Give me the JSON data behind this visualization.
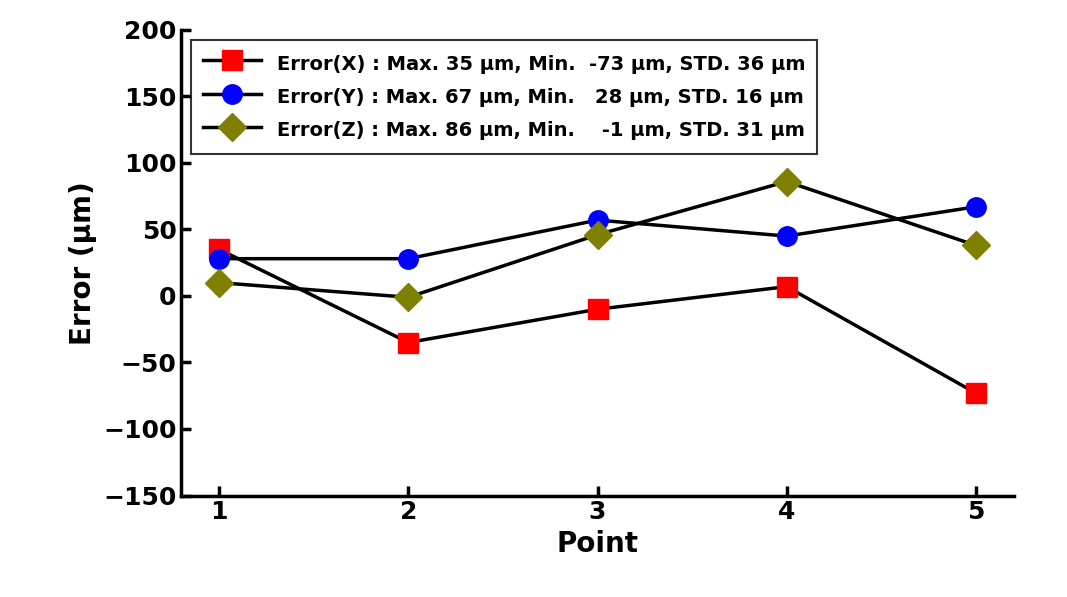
{
  "x": [
    1,
    2,
    3,
    4,
    5
  ],
  "error_x": [
    35,
    -35,
    -10,
    7,
    -73
  ],
  "error_y": [
    28,
    28,
    57,
    45,
    67
  ],
  "error_z": [
    10,
    -1,
    46,
    86,
    38
  ],
  "color_x": "#FF0000",
  "color_y": "#0000FF",
  "color_z": "#808000",
  "line_color": "#000000",
  "marker_x": "s",
  "marker_y": "o",
  "marker_z": "D",
  "label_x": "Error(X) : Max. 35 μm, Min.  -73 μm, STD. 36 μm",
  "label_y": "Error(Y) : Max. 67 μm, Min.   28 μm, STD. 16 μm",
  "label_z": "Error(Z) : Max. 86 μm, Min.    -1 μm, STD. 31 μm",
  "xlabel": "Point",
  "ylabel": "Error (μm)",
  "ylim": [
    -150,
    200
  ],
  "yticks": [
    -150,
    -100,
    -50,
    0,
    50,
    100,
    150,
    200
  ],
  "xticks": [
    1,
    2,
    3,
    4,
    5
  ],
  "background_color": "#FFFFFF",
  "linewidth": 2.5,
  "markersize": 14,
  "tick_fontsize": 18,
  "label_fontsize": 20,
  "legend_fontsize": 14
}
